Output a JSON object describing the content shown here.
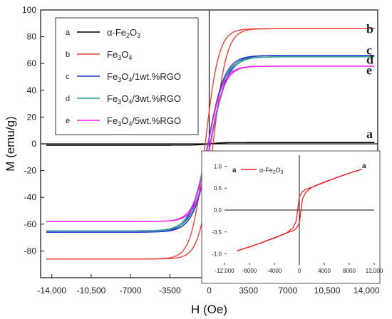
{
  "chart_data": [
    {
      "type": "line",
      "title": "",
      "xlabel": "H (Oe)",
      "ylabel": "M (emu/g)",
      "xlim": [
        -15000,
        15000
      ],
      "ylim": [
        -100,
        100
      ],
      "x_ticks": [
        "-14,000",
        "-10,500",
        "-7000",
        "-3500",
        "0",
        "3500",
        "7000",
        "10,500",
        "14,000"
      ],
      "x_tick_values": [
        -14000,
        -10500,
        -7000,
        -3500,
        0,
        3500,
        7000,
        10500,
        14000
      ],
      "y_ticks": [
        "100",
        "80",
        "60",
        "40",
        "20",
        "0",
        "-20",
        "-40",
        "-60",
        "-80"
      ],
      "y_tick_values": [
        100,
        80,
        60,
        40,
        20,
        0,
        -20,
        -40,
        -60,
        -80
      ],
      "legend_position": "top-left",
      "series": [
        {
          "key": "a",
          "name": "α-Fe2O3",
          "name_main": "α-Fe",
          "name_sub": "2",
          "name_tail": "O",
          "name_sub2": "3",
          "color": "#000000",
          "ms": 1.0,
          "hc": 0,
          "width": 1200,
          "end_label": "a"
        },
        {
          "key": "b",
          "name": "Fe3O4",
          "name_main": "Fe",
          "name_sub": "3",
          "name_tail": "O",
          "name_sub2": "4",
          "name_rest": "",
          "color": "#e8403a",
          "ms": 86,
          "hc": 350,
          "width": 1200,
          "end_label": "b"
        },
        {
          "key": "c",
          "name": "Fe3O4/1wt.%RGO",
          "name_main": "Fe",
          "name_sub": "3",
          "name_tail": "O",
          "name_sub2": "4",
          "name_rest": "/1wt.%RGO",
          "color": "#2030d0",
          "ms": 66,
          "hc": 120,
          "width": 1500,
          "end_label": "c"
        },
        {
          "key": "d",
          "name": "Fe3O4/3wt.%RGO",
          "name_main": "Fe",
          "name_sub": "3",
          "name_tail": "O",
          "name_sub2": "4",
          "name_rest": "/3wt.%RGO",
          "color": "#2e9a8e",
          "ms": 65,
          "hc": 110,
          "width": 1550,
          "end_label": "d"
        },
        {
          "key": "e",
          "name": "Fe3O4/5wt.%RGO",
          "name_main": "Fe",
          "name_sub": "3",
          "name_tail": "O",
          "name_sub2": "4",
          "name_rest": "/5wt.%RGO",
          "color": "#ee22ee",
          "ms": 58,
          "hc": 80,
          "width": 1300,
          "end_label": "e"
        }
      ]
    },
    {
      "type": "line",
      "title": "",
      "xlim": [
        -12000,
        12000
      ],
      "ylim": [
        -1.25,
        1.25
      ],
      "x_ticks": [
        "-12,000",
        "-8000",
        "-4000",
        "0",
        "4000",
        "8000",
        "12,000"
      ],
      "x_tick_values": [
        -12000,
        -8000,
        -4000,
        0,
        4000,
        8000,
        12000
      ],
      "y_ticks": [
        "1.0",
        "0.5",
        "0.0",
        "-0.5",
        "-1.0"
      ],
      "y_tick_values": [
        1.0,
        0.5,
        0.0,
        -0.5,
        -1.0
      ],
      "series": [
        {
          "key": "a",
          "name": "α-Fe2O3",
          "name_main": "α-Fe",
          "name_sub": "2",
          "name_tail": "O",
          "name_sub2": "3",
          "color": "#e8202a",
          "x": [
            -10000,
            -8000,
            -6000,
            -4000,
            -2000,
            -1000,
            -500,
            0,
            500,
            1000,
            2000,
            4000,
            6000,
            8000,
            10000
          ],
          "y_upper": [
            -0.93,
            -0.84,
            -0.74,
            -0.64,
            -0.52,
            -0.4,
            -0.25,
            0.3,
            0.42,
            0.47,
            0.52,
            0.63,
            0.74,
            0.84,
            0.93
          ],
          "y_lower": [
            -0.93,
            -0.84,
            -0.74,
            -0.63,
            -0.52,
            -0.47,
            -0.42,
            -0.3,
            0.25,
            0.4,
            0.52,
            0.64,
            0.74,
            0.84,
            0.93
          ],
          "end_label": "a"
        }
      ]
    }
  ]
}
